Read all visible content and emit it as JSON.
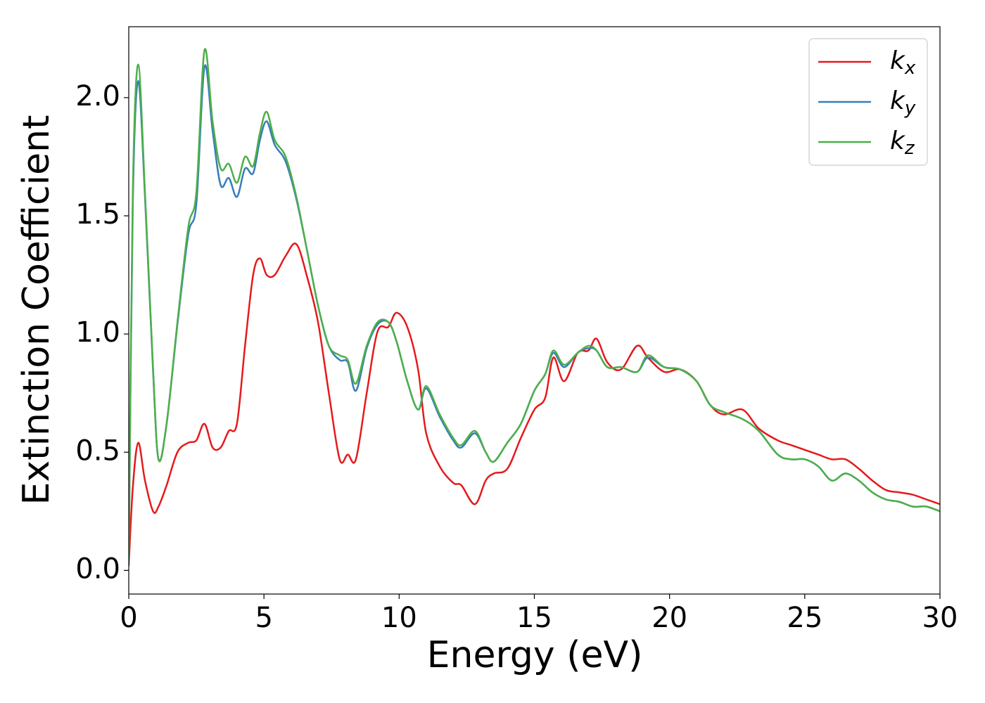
{
  "chart_data": {
    "type": "line",
    "xlabel": "Energy (eV)",
    "ylabel": "Extinction Coefficient",
    "xlim": [
      0,
      30
    ],
    "ylim": [
      -0.1,
      2.3
    ],
    "xticks": [
      0,
      5,
      10,
      15,
      20,
      25,
      30
    ],
    "yticks": [
      {
        "value": 0,
        "label": "0.0"
      },
      0.5,
      {
        "value": 1,
        "label": "1.0"
      },
      1.5,
      {
        "value": 2,
        "label": "2.0"
      }
    ],
    "legend": "upper right",
    "x": [
      0,
      0.15,
      0.35,
      0.6,
      0.9,
      1.1,
      1.4,
      1.8,
      2.2,
      2.5,
      2.8,
      3.1,
      3.4,
      3.7,
      4.0,
      4.3,
      4.6,
      4.85,
      5.1,
      5.4,
      5.8,
      6.2,
      6.6,
      7.0,
      7.4,
      7.8,
      8.1,
      8.4,
      8.8,
      9.2,
      9.6,
      9.9,
      10.3,
      10.7,
      11.0,
      11.5,
      12.0,
      12.3,
      12.8,
      13.2,
      13.5,
      14.0,
      14.5,
      15.0,
      15.4,
      15.7,
      16.1,
      16.6,
      17.0,
      17.3,
      17.7,
      18.2,
      18.8,
      19.2,
      19.8,
      20.4,
      21.0,
      21.5,
      22.0,
      22.7,
      23.3,
      24.0,
      24.5,
      25.0,
      25.5,
      26.0,
      26.5,
      27.0,
      27.5,
      28.0,
      28.5,
      29.0,
      29.5,
      30.0
    ],
    "series": [
      {
        "name": "kx",
        "color": "#e41a1c",
        "values": [
          0.02,
          0.35,
          0.54,
          0.38,
          0.25,
          0.27,
          0.36,
          0.5,
          0.54,
          0.55,
          0.62,
          0.52,
          0.52,
          0.59,
          0.62,
          0.95,
          1.25,
          1.32,
          1.25,
          1.25,
          1.33,
          1.38,
          1.24,
          1.05,
          0.75,
          0.47,
          0.49,
          0.47,
          0.75,
          1.01,
          1.03,
          1.09,
          1.03,
          0.85,
          0.58,
          0.44,
          0.37,
          0.36,
          0.28,
          0.38,
          0.41,
          0.43,
          0.56,
          0.68,
          0.73,
          0.9,
          0.8,
          0.92,
          0.93,
          0.98,
          0.88,
          0.85,
          0.95,
          0.9,
          0.84,
          0.85,
          0.8,
          0.7,
          0.66,
          0.68,
          0.6,
          0.55,
          0.53,
          0.51,
          0.49,
          0.47,
          0.47,
          0.43,
          0.38,
          0.34,
          0.33,
          0.32,
          0.3,
          0.28
        ]
      },
      {
        "name": "ky",
        "color": "#377eb8",
        "values": [
          0.02,
          1.55,
          2.07,
          1.58,
          0.84,
          0.47,
          0.62,
          1.04,
          1.42,
          1.55,
          2.13,
          1.86,
          1.63,
          1.66,
          1.58,
          1.7,
          1.68,
          1.82,
          1.9,
          1.8,
          1.73,
          1.57,
          1.35,
          1.12,
          0.95,
          0.89,
          0.88,
          0.76,
          0.94,
          1.04,
          1.05,
          0.97,
          0.8,
          0.68,
          0.77,
          0.65,
          0.55,
          0.52,
          0.58,
          0.5,
          0.46,
          0.54,
          0.62,
          0.76,
          0.83,
          0.92,
          0.86,
          0.92,
          0.94,
          0.93,
          0.86,
          0.86,
          0.84,
          0.9,
          0.86,
          0.85,
          0.8,
          0.7,
          0.67,
          0.64,
          0.59,
          0.49,
          0.47,
          0.47,
          0.44,
          0.38,
          0.41,
          0.38,
          0.33,
          0.3,
          0.29,
          0.27,
          0.27,
          0.25
        ]
      },
      {
        "name": "kz",
        "color": "#4daf4a",
        "values": [
          0.02,
          1.6,
          2.14,
          1.6,
          0.85,
          0.47,
          0.62,
          1.05,
          1.45,
          1.6,
          2.2,
          1.9,
          1.7,
          1.72,
          1.64,
          1.75,
          1.71,
          1.85,
          1.94,
          1.82,
          1.75,
          1.58,
          1.35,
          1.12,
          0.95,
          0.91,
          0.89,
          0.79,
          0.95,
          1.05,
          1.05,
          0.97,
          0.8,
          0.68,
          0.78,
          0.66,
          0.56,
          0.53,
          0.59,
          0.5,
          0.46,
          0.54,
          0.62,
          0.76,
          0.83,
          0.93,
          0.87,
          0.92,
          0.95,
          0.93,
          0.86,
          0.86,
          0.84,
          0.91,
          0.86,
          0.85,
          0.8,
          0.7,
          0.67,
          0.64,
          0.59,
          0.49,
          0.47,
          0.47,
          0.44,
          0.38,
          0.41,
          0.38,
          0.33,
          0.3,
          0.29,
          0.27,
          0.27,
          0.25
        ]
      }
    ]
  }
}
